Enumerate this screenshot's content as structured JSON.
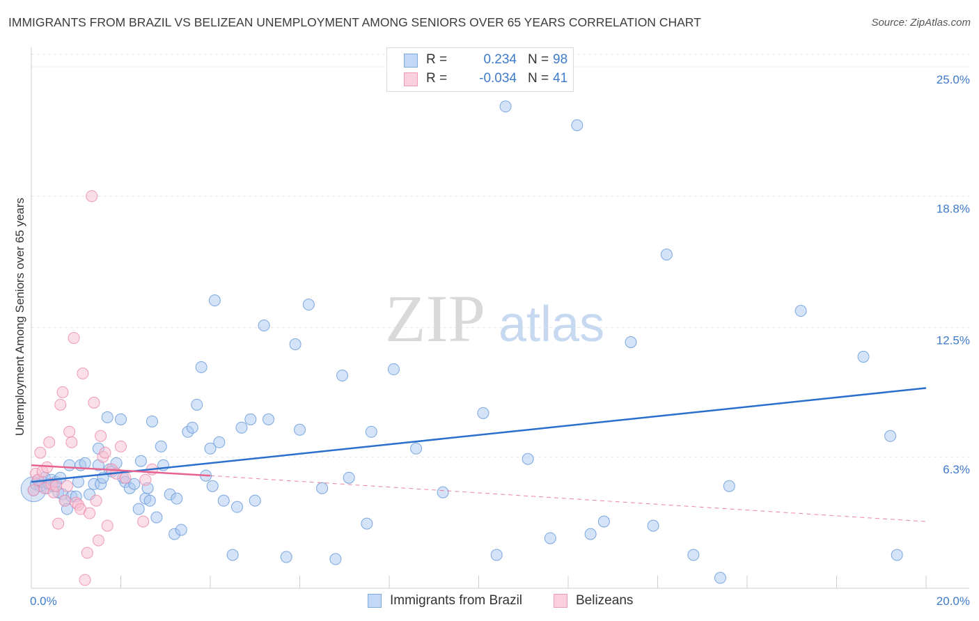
{
  "header": {
    "title": "IMMIGRANTS FROM BRAZIL VS BELIZEAN UNEMPLOYMENT AMONG SENIORS OVER 65 YEARS CORRELATION CHART",
    "source": "Source: ZipAtlas.com"
  },
  "legend": {
    "rows": [
      {
        "r_label": "R =",
        "r_value": "0.234",
        "n_label": "N =",
        "n_value": "98"
      },
      {
        "r_label": "R =",
        "r_value": "-0.034",
        "n_label": "N =",
        "n_value": "41"
      }
    ]
  },
  "bottom_legend": [
    {
      "label": "Immigrants from Brazil"
    },
    {
      "label": "Belizeans"
    }
  ],
  "watermark": {
    "zip": "ZIP",
    "atlas": "atlas"
  },
  "colors": {
    "blue_fill": "#a9c8f0",
    "blue_stroke": "#6f9fdc",
    "blue_line": "#2a6fcc",
    "pink_fill": "#f7bfd2",
    "pink_stroke": "#ec8fae",
    "pink_line": "#e8628f",
    "axis_text": "#3d7ac9",
    "grid": "#e4e4e4"
  },
  "chart_data": {
    "type": "scatter",
    "title": "IMMIGRANTS FROM BRAZIL VS BELIZEAN UNEMPLOYMENT AMONG SENIORS OVER 65 YEARS CORRELATION CHART",
    "xlabel": "",
    "ylabel": "Unemployment Among Seniors over 65 years",
    "xlim": [
      0,
      20
    ],
    "ylim": [
      0,
      25.6
    ],
    "x_tick_labels": [
      "0.0%",
      "20.0%"
    ],
    "y_ticks": [
      6.3,
      12.5,
      18.8,
      25.0
    ],
    "y_tick_labels": [
      "6.3%",
      "12.5%",
      "18.8%",
      "25.0%"
    ],
    "series": [
      {
        "name": "Immigrants from Brazil",
        "color": "#a9c8f0",
        "trend": {
          "x0": 0,
          "y0": 5.1,
          "x1": 20,
          "y1": 9.6
        },
        "points": [
          [
            0.05,
            4.7
          ],
          [
            0.1,
            5.0
          ],
          [
            0.15,
            5.2
          ],
          [
            0.2,
            4.9
          ],
          [
            0.25,
            5.1
          ],
          [
            0.3,
            5.3
          ],
          [
            0.35,
            4.8
          ],
          [
            0.4,
            5.0
          ],
          [
            0.45,
            5.2
          ],
          [
            0.5,
            4.9
          ],
          [
            0.55,
            5.1
          ],
          [
            0.6,
            4.6
          ],
          [
            0.65,
            5.3
          ],
          [
            0.7,
            4.5
          ],
          [
            0.75,
            4.2
          ],
          [
            0.8,
            3.8
          ],
          [
            0.85,
            5.9
          ],
          [
            0.9,
            4.4
          ],
          [
            1.0,
            4.4
          ],
          [
            1.05,
            5.1
          ],
          [
            1.1,
            5.9
          ],
          [
            1.2,
            6.0
          ],
          [
            1.3,
            4.5
          ],
          [
            1.4,
            5.0
          ],
          [
            1.5,
            5.9
          ],
          [
            1.5,
            6.7
          ],
          [
            1.55,
            5.0
          ],
          [
            1.6,
            5.3
          ],
          [
            1.7,
            8.2
          ],
          [
            1.75,
            5.7
          ],
          [
            1.8,
            5.6
          ],
          [
            1.9,
            6.0
          ],
          [
            2.0,
            8.1
          ],
          [
            2.05,
            5.3
          ],
          [
            2.1,
            5.1
          ],
          [
            2.2,
            4.8
          ],
          [
            2.3,
            5.0
          ],
          [
            2.4,
            3.8
          ],
          [
            2.45,
            6.1
          ],
          [
            2.55,
            4.3
          ],
          [
            2.6,
            4.8
          ],
          [
            2.65,
            4.2
          ],
          [
            2.7,
            8.0
          ],
          [
            2.8,
            3.4
          ],
          [
            2.9,
            6.8
          ],
          [
            2.95,
            5.9
          ],
          [
            3.1,
            4.5
          ],
          [
            3.2,
            2.6
          ],
          [
            3.25,
            4.3
          ],
          [
            3.35,
            2.8
          ],
          [
            3.5,
            7.5
          ],
          [
            3.6,
            7.7
          ],
          [
            3.7,
            8.8
          ],
          [
            3.8,
            10.6
          ],
          [
            3.9,
            5.4
          ],
          [
            4.0,
            6.7
          ],
          [
            4.05,
            4.9
          ],
          [
            4.1,
            13.8
          ],
          [
            4.2,
            7.0
          ],
          [
            4.3,
            4.2
          ],
          [
            4.5,
            1.6
          ],
          [
            4.6,
            3.9
          ],
          [
            4.7,
            7.7
          ],
          [
            4.9,
            8.1
          ],
          [
            5.0,
            4.2
          ],
          [
            5.2,
            12.6
          ],
          [
            5.3,
            8.1
          ],
          [
            5.7,
            1.5
          ],
          [
            5.9,
            11.7
          ],
          [
            6.0,
            7.6
          ],
          [
            6.2,
            13.6
          ],
          [
            6.5,
            4.8
          ],
          [
            6.8,
            1.4
          ],
          [
            6.95,
            10.2
          ],
          [
            7.1,
            5.3
          ],
          [
            7.5,
            3.1
          ],
          [
            7.6,
            7.5
          ],
          [
            8.1,
            10.5
          ],
          [
            8.6,
            6.7
          ],
          [
            9.2,
            4.6
          ],
          [
            10.1,
            8.4
          ],
          [
            10.4,
            1.6
          ],
          [
            10.6,
            23.1
          ],
          [
            11.1,
            6.2
          ],
          [
            11.6,
            2.4
          ],
          [
            12.2,
            22.2
          ],
          [
            12.5,
            2.6
          ],
          [
            12.8,
            3.2
          ],
          [
            13.4,
            11.8
          ],
          [
            13.9,
            3.0
          ],
          [
            14.2,
            16.0
          ],
          [
            14.8,
            1.6
          ],
          [
            15.4,
            0.5
          ],
          [
            15.6,
            4.9
          ],
          [
            17.2,
            13.3
          ],
          [
            18.6,
            11.1
          ],
          [
            19.2,
            7.3
          ],
          [
            19.35,
            1.6
          ]
        ]
      },
      {
        "name": "Belizeans",
        "color": "#f7bfd2",
        "trend": {
          "x0": 0,
          "y0": 5.9,
          "x1": 4.0,
          "y1": 5.4
        },
        "trend_ext": {
          "x0": 4.0,
          "y0": 5.4,
          "x1": 20,
          "y1": 3.2
        },
        "points": [
          [
            0.05,
            4.7
          ],
          [
            0.1,
            5.5
          ],
          [
            0.15,
            5.2
          ],
          [
            0.2,
            6.5
          ],
          [
            0.25,
            5.6
          ],
          [
            0.3,
            4.8
          ],
          [
            0.35,
            5.8
          ],
          [
            0.4,
            7.0
          ],
          [
            0.45,
            5.0
          ],
          [
            0.5,
            4.6
          ],
          [
            0.55,
            4.9
          ],
          [
            0.6,
            3.1
          ],
          [
            0.65,
            8.8
          ],
          [
            0.7,
            9.4
          ],
          [
            0.75,
            4.2
          ],
          [
            0.8,
            4.9
          ],
          [
            0.85,
            7.5
          ],
          [
            0.9,
            7.0
          ],
          [
            0.95,
            12.0
          ],
          [
            1.0,
            4.1
          ],
          [
            1.05,
            4.0
          ],
          [
            1.1,
            3.8
          ],
          [
            1.15,
            10.3
          ],
          [
            1.2,
            0.4
          ],
          [
            1.25,
            1.7
          ],
          [
            1.3,
            3.6
          ],
          [
            1.35,
            18.8
          ],
          [
            1.4,
            8.9
          ],
          [
            1.45,
            4.2
          ],
          [
            1.5,
            2.3
          ],
          [
            1.55,
            7.3
          ],
          [
            1.6,
            6.3
          ],
          [
            1.65,
            6.5
          ],
          [
            1.7,
            3.0
          ],
          [
            1.8,
            5.7
          ],
          [
            1.9,
            5.5
          ],
          [
            2.0,
            6.8
          ],
          [
            2.1,
            5.3
          ],
          [
            2.5,
            3.2
          ],
          [
            2.55,
            5.2
          ],
          [
            2.7,
            5.7
          ]
        ]
      }
    ]
  }
}
